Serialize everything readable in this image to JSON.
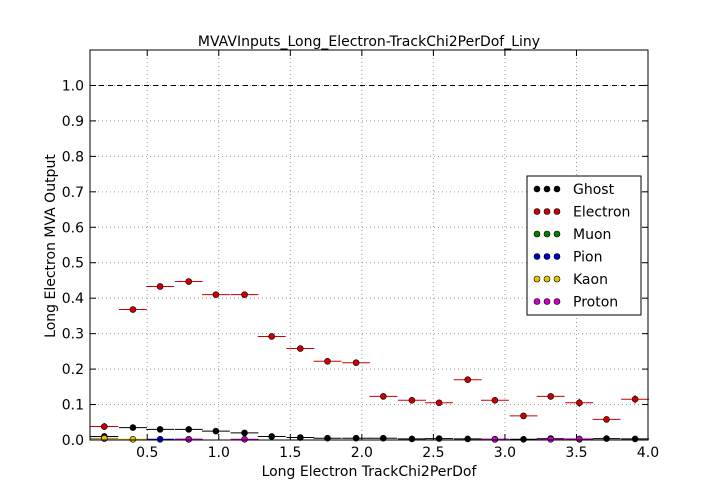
{
  "chart_data": {
    "type": "scatter",
    "title": "MVAVInputs_Long_Electron-TrackChi2PerDof_Liny",
    "xlabel": "Long Electron TrackChi2PerDof",
    "ylabel": "Long Electron MVA Output",
    "xlim": [
      0.1,
      4.0
    ],
    "ylim": [
      0.0,
      1.1
    ],
    "xticks": [
      "0.5",
      "1.0",
      "1.5",
      "2.0",
      "2.5",
      "3.0",
      "3.5",
      "4.0"
    ],
    "yticks": [
      "0.0",
      "0.1",
      "0.2",
      "0.3",
      "0.4",
      "0.5",
      "0.6",
      "0.7",
      "0.8",
      "0.9",
      "1.0"
    ],
    "grid": true,
    "reference_line": 1.0,
    "legend_position": "center-right",
    "bin_half_width": 0.0975,
    "series": [
      {
        "name": "Ghost",
        "color": "#000000",
        "points": [
          {
            "x": 0.2,
            "y": 0.01,
            "err": 0.004
          },
          {
            "x": 0.4,
            "y": 0.035,
            "err": 0.003
          },
          {
            "x": 0.59,
            "y": 0.03,
            "err": 0.003
          },
          {
            "x": 0.79,
            "y": 0.03,
            "err": 0.003
          },
          {
            "x": 0.98,
            "y": 0.025,
            "err": 0.003
          },
          {
            "x": 1.18,
            "y": 0.02,
            "err": 0.003
          },
          {
            "x": 1.37,
            "y": 0.01,
            "err": 0.003
          },
          {
            "x": 1.57,
            "y": 0.007,
            "err": 0.003
          },
          {
            "x": 1.76,
            "y": 0.005,
            "err": 0.003
          },
          {
            "x": 1.96,
            "y": 0.005,
            "err": 0.003
          },
          {
            "x": 2.15,
            "y": 0.005,
            "err": 0.003
          },
          {
            "x": 2.35,
            "y": 0.003,
            "err": 0.003
          },
          {
            "x": 2.54,
            "y": 0.004,
            "err": 0.003
          },
          {
            "x": 2.74,
            "y": 0.003,
            "err": 0.003
          },
          {
            "x": 2.93,
            "y": 0.002,
            "err": 0.003
          },
          {
            "x": 3.13,
            "y": 0.002,
            "err": 0.003
          },
          {
            "x": 3.32,
            "y": 0.004,
            "err": 0.003
          },
          {
            "x": 3.52,
            "y": 0.002,
            "err": 0.003
          },
          {
            "x": 3.71,
            "y": 0.004,
            "err": 0.003
          },
          {
            "x": 3.91,
            "y": 0.003,
            "err": 0.003
          }
        ]
      },
      {
        "name": "Electron",
        "color": "#cc0000",
        "points": [
          {
            "x": 0.2,
            "y": 0.038,
            "err": 0.01
          },
          {
            "x": 0.4,
            "y": 0.368,
            "err": 0.004
          },
          {
            "x": 0.59,
            "y": 0.433,
            "err": 0.004
          },
          {
            "x": 0.79,
            "y": 0.447,
            "err": 0.004
          },
          {
            "x": 0.98,
            "y": 0.41,
            "err": 0.004
          },
          {
            "x": 1.18,
            "y": 0.41,
            "err": 0.004
          },
          {
            "x": 1.37,
            "y": 0.292,
            "err": 0.005
          },
          {
            "x": 1.57,
            "y": 0.258,
            "err": 0.005
          },
          {
            "x": 1.76,
            "y": 0.222,
            "err": 0.005
          },
          {
            "x": 1.96,
            "y": 0.218,
            "err": 0.005
          },
          {
            "x": 2.15,
            "y": 0.123,
            "err": 0.006
          },
          {
            "x": 2.35,
            "y": 0.112,
            "err": 0.006
          },
          {
            "x": 2.54,
            "y": 0.105,
            "err": 0.006
          },
          {
            "x": 2.74,
            "y": 0.17,
            "err": 0.007
          },
          {
            "x": 2.93,
            "y": 0.112,
            "err": 0.007
          },
          {
            "x": 3.13,
            "y": 0.068,
            "err": 0.007
          },
          {
            "x": 3.32,
            "y": 0.123,
            "err": 0.008
          },
          {
            "x": 3.52,
            "y": 0.105,
            "err": 0.012
          },
          {
            "x": 3.71,
            "y": 0.058,
            "err": 0.008
          },
          {
            "x": 3.91,
            "y": 0.115,
            "err": 0.012
          }
        ]
      },
      {
        "name": "Muon",
        "color": "#008000",
        "points": []
      },
      {
        "name": "Pion",
        "color": "#0000cc",
        "points": [
          {
            "x": 0.2,
            "y": 0.004,
            "err": 0.002
          },
          {
            "x": 0.59,
            "y": 0.002,
            "err": 0.002
          },
          {
            "x": 0.79,
            "y": 0.002,
            "err": 0.002
          }
        ]
      },
      {
        "name": "Kaon",
        "color": "#e6c200",
        "points": [
          {
            "x": 0.2,
            "y": 0.005,
            "err": 0.002
          },
          {
            "x": 0.4,
            "y": 0.002,
            "err": 0.002
          }
        ]
      },
      {
        "name": "Proton",
        "color": "#cc00cc",
        "points": [
          {
            "x": 0.79,
            "y": 0.002,
            "err": 0.002
          },
          {
            "x": 1.18,
            "y": 0.002,
            "err": 0.002
          },
          {
            "x": 2.93,
            "y": 0.002,
            "err": 0.002
          },
          {
            "x": 3.32,
            "y": 0.002,
            "err": 0.002
          },
          {
            "x": 3.52,
            "y": 0.003,
            "err": 0.002
          }
        ]
      }
    ]
  }
}
